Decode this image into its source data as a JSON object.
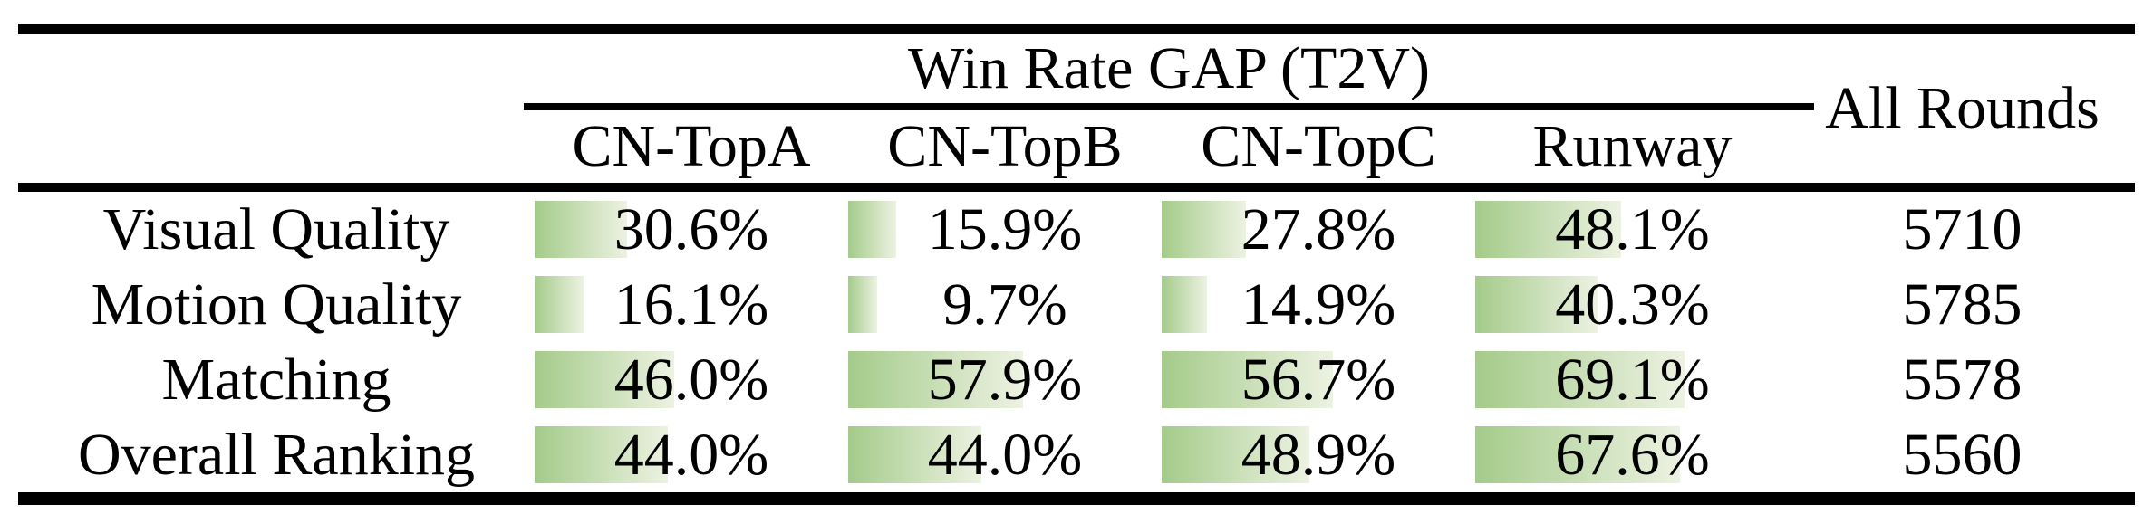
{
  "table": {
    "title": "Win Rate GAP (T2V)",
    "all_rounds_header": "All Rounds",
    "columns": [
      "CN-TopA",
      "CN-TopB",
      "CN-TopC",
      "Runway"
    ],
    "rows": [
      {
        "label": "Visual Quality",
        "cells": [
          "30.6%",
          "15.9%",
          "27.8%",
          "48.1%"
        ],
        "all_rounds": "5710"
      },
      {
        "label": "Motion Quality",
        "cells": [
          "16.1%",
          "9.7%",
          "14.9%",
          "40.3%"
        ],
        "all_rounds": "5785"
      },
      {
        "label": "Matching",
        "cells": [
          "46.0%",
          "57.9%",
          "56.7%",
          "69.1%"
        ],
        "all_rounds": "5578"
      },
      {
        "label": "Overall Ranking",
        "cells": [
          "44.0%",
          "44.0%",
          "48.9%",
          "67.6%"
        ],
        "all_rounds": "5560"
      }
    ],
    "bar_gradient_start": "#a4cb8a",
    "bar_gradient_end": "#edf2e2"
  },
  "chart_data": {
    "type": "table",
    "title": "Win Rate GAP (T2V)",
    "categories": [
      "Visual Quality",
      "Motion Quality",
      "Matching",
      "Overall Ranking"
    ],
    "series": [
      {
        "name": "CN-TopA",
        "values": [
          30.6,
          16.1,
          46.0,
          44.0
        ]
      },
      {
        "name": "CN-TopB",
        "values": [
          15.9,
          9.7,
          57.9,
          44.0
        ]
      },
      {
        "name": "CN-TopC",
        "values": [
          27.8,
          14.9,
          56.7,
          48.9
        ]
      },
      {
        "name": "Runway",
        "values": [
          48.1,
          40.3,
          69.1,
          67.6
        ]
      }
    ],
    "all_rounds": [
      5710,
      5785,
      5578,
      5560
    ],
    "unit": "%",
    "bar_style": "in-cell horizontal data bars, green-to-pale gradient, length proportional to percentage"
  }
}
